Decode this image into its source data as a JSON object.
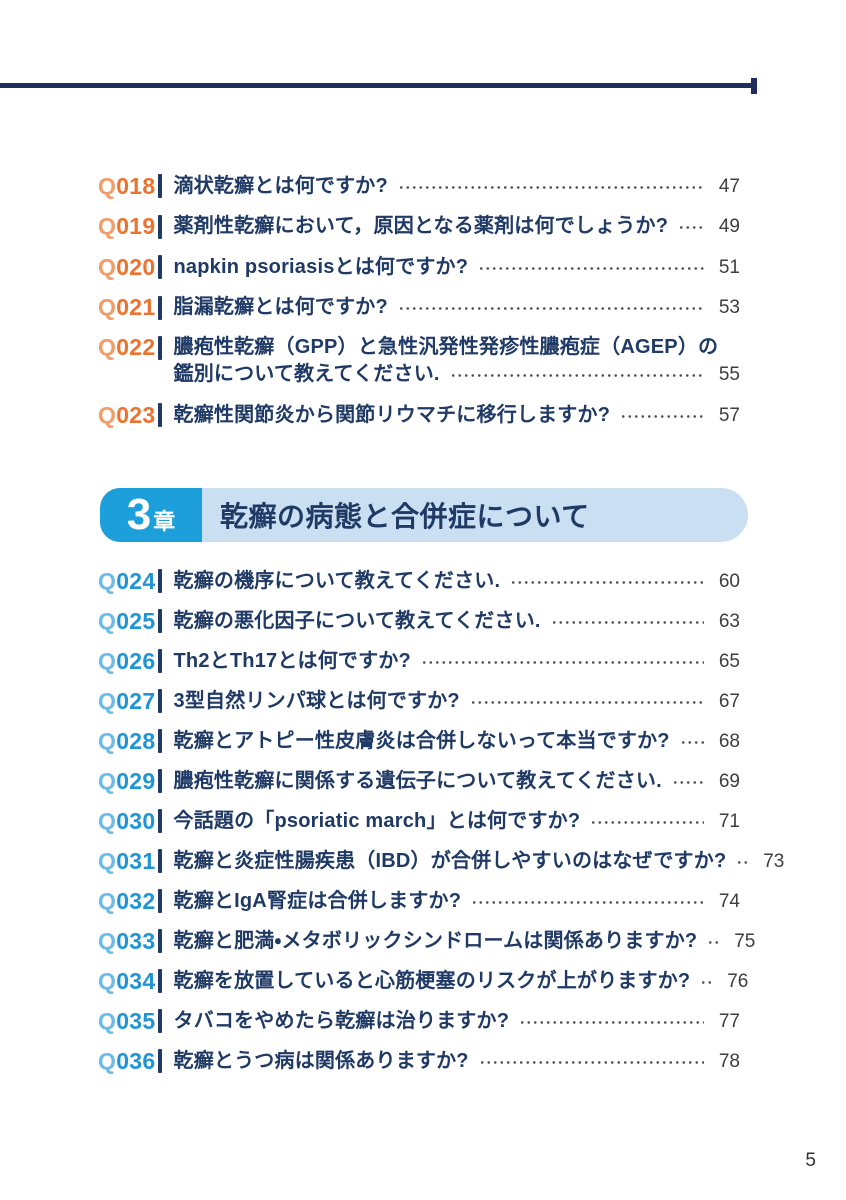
{
  "page": {
    "footer_page_number": "5"
  },
  "colors": {
    "navy_text": "#203a66",
    "top_rule": "#1f2e5b",
    "orange_q_letter": "#f29d68",
    "orange_q_digits": "#ec7230",
    "blue_q_letter": "#6cbce9",
    "blue_q_digits": "#1e96d6",
    "chapter_badge_blue": "#1c9fda",
    "chapter_banner_bg": "#cbdff2",
    "page_number_gray": "#3d3d3d"
  },
  "toc": {
    "sections": [
      {
        "theme": "orange",
        "items": [
          {
            "label": "Q018",
            "question": "滴状乾癬とは何ですか?",
            "page": "47"
          },
          {
            "label": "Q019",
            "question": "薬剤性乾癬において，原因となる薬剤は何でしょうか?",
            "page": "49"
          },
          {
            "label": "Q020",
            "question": "napkin psoriasisとは何ですか?",
            "page": "51"
          },
          {
            "label": "Q021",
            "question": "脂漏乾癬とは何ですか?",
            "page": "53"
          },
          {
            "label": "Q022",
            "question": "膿疱性乾癬（GPP）と急性汎発性発疹性膿疱症（AGEP）の",
            "question_line2": "鑑別について教えてください.",
            "page": "55"
          },
          {
            "label": "Q023",
            "question": "乾癬性関節炎から関節リウマチに移行しますか?",
            "page": "57"
          }
        ]
      },
      {
        "theme": "blue",
        "chapter": {
          "number": "3",
          "suffix": "章",
          "title": "乾癬の病態と合併症について"
        },
        "items": [
          {
            "label": "Q024",
            "question": "乾癬の機序について教えてください.",
            "page": "60"
          },
          {
            "label": "Q025",
            "question": "乾癬の悪化因子について教えてください.",
            "page": "63"
          },
          {
            "label": "Q026",
            "question": "Th2とTh17とは何ですか?",
            "page": "65"
          },
          {
            "label": "Q027",
            "question": "3型自然リンパ球とは何ですか?",
            "page": "67"
          },
          {
            "label": "Q028",
            "question": "乾癬とアトピー性皮膚炎は合併しないって本当ですか?",
            "page": "68"
          },
          {
            "label": "Q029",
            "question": "膿疱性乾癬に関係する遺伝子について教えてください.",
            "page": "69"
          },
          {
            "label": "Q030",
            "question": "今話題の「psoriatic march」とは何ですか?",
            "page": "71"
          },
          {
            "label": "Q031",
            "question": "乾癬と炎症性腸疾患（IBD）が合併しやすいのはなぜですか?",
            "page": "73"
          },
          {
            "label": "Q032",
            "question": "乾癬とIgA腎症は合併しますか?",
            "page": "74"
          },
          {
            "label": "Q033",
            "question": "乾癬と肥満・メタボリックシンドロームは関係ありますか?",
            "page": "75"
          },
          {
            "label": "Q034",
            "question": "乾癬を放置していると心筋梗塞のリスクが上がりますか?",
            "page": "76"
          },
          {
            "label": "Q035",
            "question": "タバコをやめたら乾癬は治りますか?",
            "page": "77"
          },
          {
            "label": "Q036",
            "question": "乾癬とうつ病は関係ありますか?",
            "page": "78"
          }
        ]
      }
    ]
  }
}
